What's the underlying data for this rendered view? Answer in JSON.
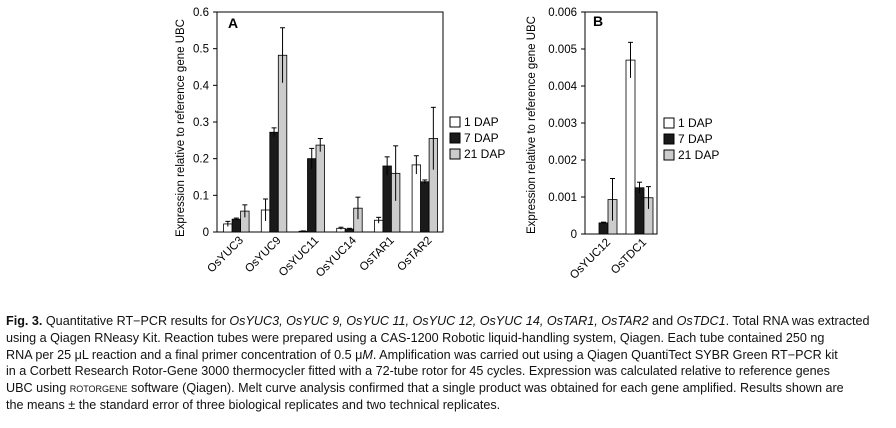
{
  "chart_data": [
    {
      "type": "bar",
      "panel": "A",
      "ylabel": "Expression relative to reference gene UBC",
      "yticks": [
        "0",
        "0.1",
        "0.2",
        "0.3",
        "0.4",
        "0.5",
        "0.6"
      ],
      "ylim": [
        0,
        0.6
      ],
      "categories": [
        "OsYUC3",
        "OsYUC9",
        "OsYUC11",
        "OsYUC14",
        "OsTAR1",
        "OsTAR2"
      ],
      "series": [
        {
          "name": "1 DAP",
          "color": "#ffffff",
          "values": [
            0.022,
            0.06,
            0.002,
            0.01,
            0.032,
            0.183
          ],
          "errors": [
            0.007,
            0.03,
            0.001,
            0.003,
            0.008,
            0.025
          ]
        },
        {
          "name": "7 DAP",
          "color": "#1a1a1a",
          "values": [
            0.035,
            0.272,
            0.2,
            0.008,
            0.18,
            0.137
          ],
          "errors": [
            0.003,
            0.012,
            0.028,
            0.002,
            0.025,
            0.005
          ]
        },
        {
          "name": "21 DAP",
          "color": "#cccccc",
          "values": [
            0.057,
            0.482,
            0.237,
            0.065,
            0.16,
            0.255
          ],
          "errors": [
            0.017,
            0.075,
            0.018,
            0.03,
            0.075,
            0.085
          ]
        }
      ],
      "legend_position": "right"
    },
    {
      "type": "bar",
      "panel": "B",
      "ylabel": "Expression relative to reference gene UBC",
      "yticks": [
        "0",
        "0.001",
        "0.002",
        "0.003",
        "0.004",
        "0.005",
        "0.006"
      ],
      "ylim": [
        0,
        0.006
      ],
      "categories": [
        "OsYUC12",
        "OsTDC1"
      ],
      "series": [
        {
          "name": "1 DAP",
          "color": "#ffffff",
          "values": [
            0.0,
            0.0047
          ],
          "errors": [
            0.0,
            0.00048
          ]
        },
        {
          "name": "7 DAP",
          "color": "#1a1a1a",
          "values": [
            0.0003,
            0.00125
          ],
          "errors": [
            2e-05,
            0.00015
          ]
        },
        {
          "name": "21 DAP",
          "color": "#cccccc",
          "values": [
            0.00093,
            0.00098
          ],
          "errors": [
            0.00057,
            0.0003
          ]
        }
      ],
      "legend_position": "right"
    }
  ],
  "caption": {
    "label": "Fig. 3.",
    "lines": [
      [
        {
          "t": "  Quantitative RT−PCR results for "
        },
        {
          "t": "OsYUC3, OsYUC 9, OsYUC 11, OsYUC 12, OsYUC 14, OsTAR1, OsTAR2",
          "s": "i"
        },
        {
          "t": " and "
        },
        {
          "t": "OsTDC1",
          "s": "i"
        },
        {
          "t": ". Total RNA was extracted"
        }
      ],
      [
        {
          "t": "using a Qiagen RNeasy Kit. Reaction tubes were prepared using a CAS-1200 Robotic liquid-handling system, Qiagen. Each tube contained 250 ng"
        }
      ],
      [
        {
          "t": "RNA per 25 μL reaction and a final primer concentration of 0.5 μ"
        },
        {
          "t": "M",
          "s": "i"
        },
        {
          "t": ". Amplification was carried out using a Qiagen QuantiTect SYBR Green RT−PCR kit"
        }
      ],
      [
        {
          "t": "in a Corbett Research Rotor-Gene 3000 thermocycler fitted with a 72-tube rotor for 45 cycles. Expression was calculated relative to reference genes"
        }
      ],
      [
        {
          "t": "UBC using "
        },
        {
          "t": "rotorgene",
          "s": "sc"
        },
        {
          "t": " software (Qiagen). Melt curve analysis confirmed that a single product was obtained for each gene amplified. Results shown are"
        }
      ],
      [
        {
          "t": "the means ± the standard error of three biological replicates and two technical replicates."
        }
      ]
    ]
  }
}
